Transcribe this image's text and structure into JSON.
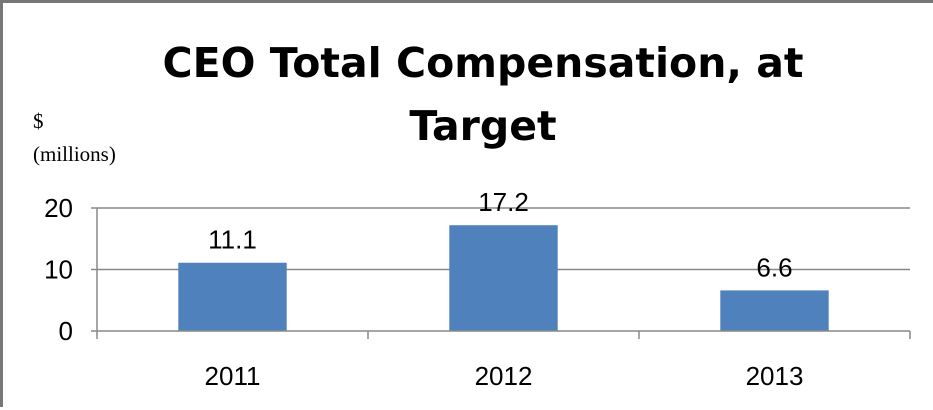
{
  "chart_data": {
    "type": "bar",
    "title_lines": [
      "CEO Total Compensation, at",
      "Target"
    ],
    "unit_lines": [
      "$",
      "(millions)"
    ],
    "xlabel": "",
    "ylabel": "",
    "categories": [
      "2011",
      "2012",
      "2013"
    ],
    "values": [
      11.1,
      17.2,
      6.6
    ],
    "data_labels": [
      "11.1",
      "17.2",
      "6.6"
    ],
    "yticks": [
      "0",
      "10",
      "20"
    ],
    "ylim": [
      0,
      20
    ],
    "grid": true,
    "legend": "none",
    "bar_color": "#4f81bd",
    "grid_color": "#888888"
  }
}
